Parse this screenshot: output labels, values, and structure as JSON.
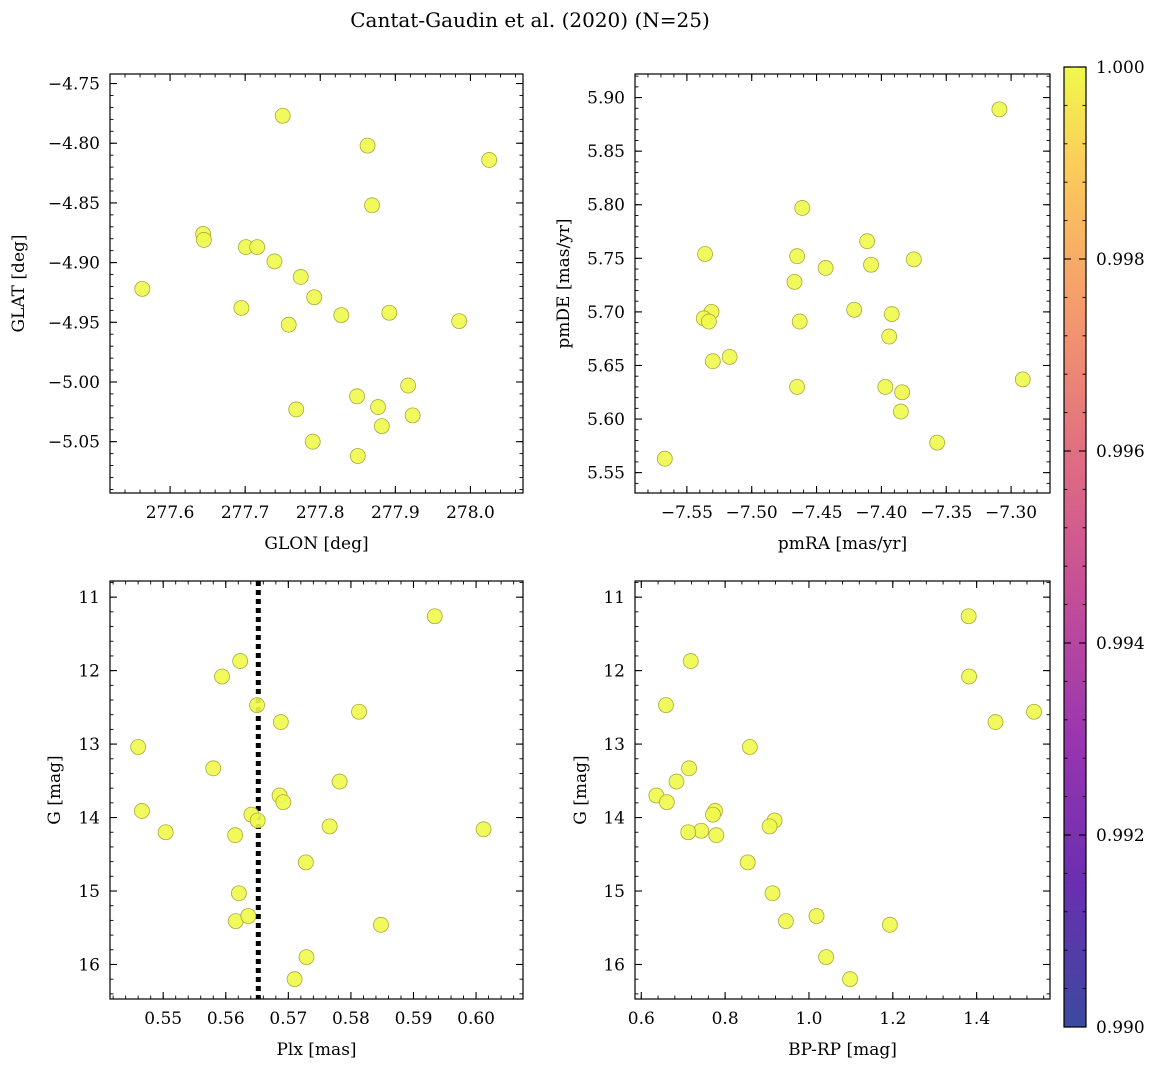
{
  "figure": {
    "title": "Cantat-Gaudin et al. (2020) (N=25)",
    "marker_color": "#f0f94a",
    "marker_edge": "#a9a93a",
    "vline_color": "#000000"
  },
  "chart_data": [
    {
      "type": "scatter",
      "xlabel": "GLON [deg]",
      "ylabel": "GLAT [deg]",
      "xlim": [
        277.52,
        278.07
      ],
      "ylim": [
        -5.093,
        -4.742
      ],
      "x_ticks": [
        277.6,
        277.7,
        277.8,
        277.9,
        278.0
      ],
      "x_tick_labels": [
        "277.6",
        "277.7",
        "277.8",
        "277.9",
        "278.0"
      ],
      "y_ticks": [
        -4.75,
        -4.8,
        -4.85,
        -4.9,
        -4.95,
        -5.0,
        -5.05
      ],
      "y_tick_labels": [
        "−4.75",
        "−4.80",
        "−4.85",
        "−4.90",
        "−4.95",
        "−5.00",
        "−5.05"
      ],
      "x": [
        277.75,
        277.863,
        278.025,
        277.869,
        277.644,
        277.645,
        277.701,
        277.716,
        277.739,
        277.774,
        277.563,
        277.792,
        277.695,
        277.758,
        277.828,
        277.892,
        277.985,
        277.917,
        277.849,
        277.877,
        277.768,
        277.923,
        277.882,
        277.79,
        277.85
      ],
      "y": [
        -4.777,
        -4.802,
        -4.814,
        -4.852,
        -4.876,
        -4.881,
        -4.887,
        -4.887,
        -4.899,
        -4.912,
        -4.922,
        -4.929,
        -4.938,
        -4.952,
        -4.944,
        -4.942,
        -4.949,
        -5.003,
        -5.012,
        -5.021,
        -5.023,
        -5.028,
        -5.037,
        -5.05,
        -5.062
      ]
    },
    {
      "type": "scatter",
      "xlabel": "pmRA [mas/yr]",
      "ylabel": "pmDE [mas/yr]",
      "xlim": [
        -7.59,
        -7.27
      ],
      "ylim": [
        5.531,
        5.922
      ],
      "x_ticks": [
        -7.55,
        -7.5,
        -7.45,
        -7.4,
        -7.35,
        -7.3
      ],
      "x_tick_labels": [
        "−7.55",
        "−7.50",
        "−7.45",
        "−7.40",
        "−7.35",
        "−7.30"
      ],
      "y_ticks": [
        5.55,
        5.6,
        5.65,
        5.7,
        5.75,
        5.8,
        5.85,
        5.9
      ],
      "y_tick_labels": [
        "5.55",
        "5.60",
        "5.65",
        "5.70",
        "5.75",
        "5.80",
        "5.85",
        "5.90"
      ],
      "x": [
        -7.309,
        -7.461,
        -7.411,
        -7.536,
        -7.465,
        -7.375,
        -7.408,
        -7.443,
        -7.467,
        -7.531,
        -7.537,
        -7.533,
        -7.421,
        -7.392,
        -7.463,
        -7.394,
        -7.517,
        -7.53,
        -7.397,
        -7.384,
        -7.465,
        -7.291,
        -7.385,
        -7.357,
        -7.567
      ],
      "y": [
        5.889,
        5.797,
        5.766,
        5.754,
        5.752,
        5.749,
        5.744,
        5.741,
        5.728,
        5.7,
        5.694,
        5.691,
        5.702,
        5.698,
        5.691,
        5.677,
        5.658,
        5.654,
        5.63,
        5.625,
        5.63,
        5.637,
        5.607,
        5.578,
        5.563
      ]
    },
    {
      "type": "scatter",
      "xlabel": "Plx [mas]",
      "ylabel": "G [mag]",
      "xlim": [
        0.5415,
        0.6075
      ],
      "ylim": [
        16.47,
        10.78
      ],
      "y_inverted": true,
      "vline": 0.5652,
      "x_ticks": [
        0.55,
        0.56,
        0.57,
        0.58,
        0.59,
        0.6
      ],
      "x_tick_labels": [
        "0.55",
        "0.56",
        "0.57",
        "0.58",
        "0.59",
        "0.60"
      ],
      "y_ticks": [
        11,
        12,
        13,
        14,
        15,
        16
      ],
      "y_tick_labels": [
        "11",
        "12",
        "13",
        "14",
        "15",
        "16"
      ],
      "x": [
        0.5934,
        0.5623,
        0.5594,
        0.565,
        0.5813,
        0.5688,
        0.546,
        0.558,
        0.5782,
        0.5686,
        0.5692,
        0.5466,
        0.5641,
        0.5651,
        0.5766,
        0.5504,
        0.5615,
        0.6012,
        0.5728,
        0.5621,
        0.5848,
        0.5616,
        0.5636,
        0.5729,
        0.571
      ],
      "y": [
        11.26,
        11.87,
        12.08,
        12.47,
        12.56,
        12.7,
        13.04,
        13.33,
        13.51,
        13.7,
        13.79,
        13.91,
        13.96,
        14.04,
        14.12,
        14.2,
        14.24,
        14.16,
        14.61,
        15.03,
        15.46,
        15.41,
        15.34,
        15.9,
        16.2
      ]
    },
    {
      "type": "scatter",
      "xlabel": "BP-RP [mag]",
      "ylabel": "G [mag]",
      "xlim": [
        0.585,
        1.575
      ],
      "ylim": [
        16.47,
        10.78
      ],
      "y_inverted": true,
      "x_ticks": [
        0.6,
        0.8,
        1.0,
        1.2,
        1.4
      ],
      "x_tick_labels": [
        "0.6",
        "0.8",
        "1.0",
        "1.2",
        "1.4"
      ],
      "y_ticks": [
        11,
        12,
        13,
        14,
        15,
        16
      ],
      "y_tick_labels": [
        "11",
        "12",
        "13",
        "14",
        "15",
        "16"
      ],
      "x": [
        1.381,
        0.718,
        1.382,
        0.659,
        1.537,
        1.445,
        0.859,
        0.714,
        0.684,
        0.636,
        0.661,
        0.776,
        0.771,
        0.918,
        0.906,
        0.743,
        0.712,
        0.779,
        0.854,
        0.913,
        1.193,
        0.945,
        1.018,
        1.041,
        1.098
      ],
      "y": [
        11.26,
        11.87,
        12.08,
        12.47,
        12.56,
        12.7,
        13.04,
        13.33,
        13.51,
        13.7,
        13.79,
        13.91,
        13.96,
        14.04,
        14.12,
        14.18,
        14.2,
        14.24,
        14.61,
        15.03,
        15.46,
        15.41,
        15.34,
        15.9,
        16.2
      ]
    }
  ],
  "colorbar": {
    "min": 0.99,
    "max": 1.0,
    "ticks": [
      0.99,
      0.992,
      0.994,
      0.996,
      0.998,
      1.0
    ],
    "tick_labels": [
      "0.990",
      "0.992",
      "0.994",
      "0.996",
      "0.998",
      "1.000"
    ],
    "colormap": "plasma"
  }
}
